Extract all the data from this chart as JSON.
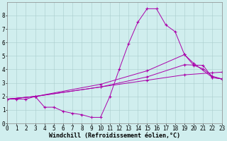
{
  "background_color": "#d0eeee",
  "line_color": "#aa00aa",
  "grid_color": "#aacccc",
  "xlabel": "Windchill (Refroidissement éolien,°C)",
  "xlabel_fontsize": 6.0,
  "tick_fontsize": 5.5,
  "xlim": [
    0,
    23
  ],
  "ylim": [
    0,
    9
  ],
  "xticks": [
    0,
    1,
    2,
    3,
    4,
    5,
    6,
    7,
    8,
    9,
    10,
    11,
    12,
    13,
    14,
    15,
    16,
    17,
    18,
    19,
    20,
    21,
    22,
    23
  ],
  "yticks": [
    0,
    1,
    2,
    3,
    4,
    5,
    6,
    7,
    8
  ],
  "series1_x": [
    0,
    1,
    2,
    3,
    4,
    5,
    6,
    7,
    8,
    9,
    10,
    11,
    12,
    13,
    14,
    15,
    16,
    17,
    18,
    19,
    20,
    21,
    22,
    23
  ],
  "series1_y": [
    1.8,
    1.8,
    1.8,
    2.0,
    1.2,
    1.2,
    0.9,
    0.75,
    0.65,
    0.45,
    0.45,
    2.0,
    4.0,
    5.9,
    7.5,
    8.5,
    8.5,
    7.3,
    6.8,
    5.1,
    4.3,
    4.05,
    3.5,
    3.3
  ],
  "series2_x": [
    0,
    3,
    10,
    15,
    19,
    22,
    23
  ],
  "series2_y": [
    1.8,
    2.0,
    2.7,
    3.2,
    3.6,
    3.75,
    3.8
  ],
  "series3_x": [
    0,
    3,
    10,
    15,
    19,
    21,
    22,
    23
  ],
  "series3_y": [
    1.8,
    2.0,
    2.7,
    3.45,
    4.35,
    4.3,
    3.4,
    3.3
  ],
  "series4_x": [
    0,
    3,
    10,
    15,
    19,
    20,
    22,
    23
  ],
  "series4_y": [
    1.8,
    2.0,
    2.9,
    3.9,
    5.1,
    4.45,
    3.4,
    3.3
  ]
}
